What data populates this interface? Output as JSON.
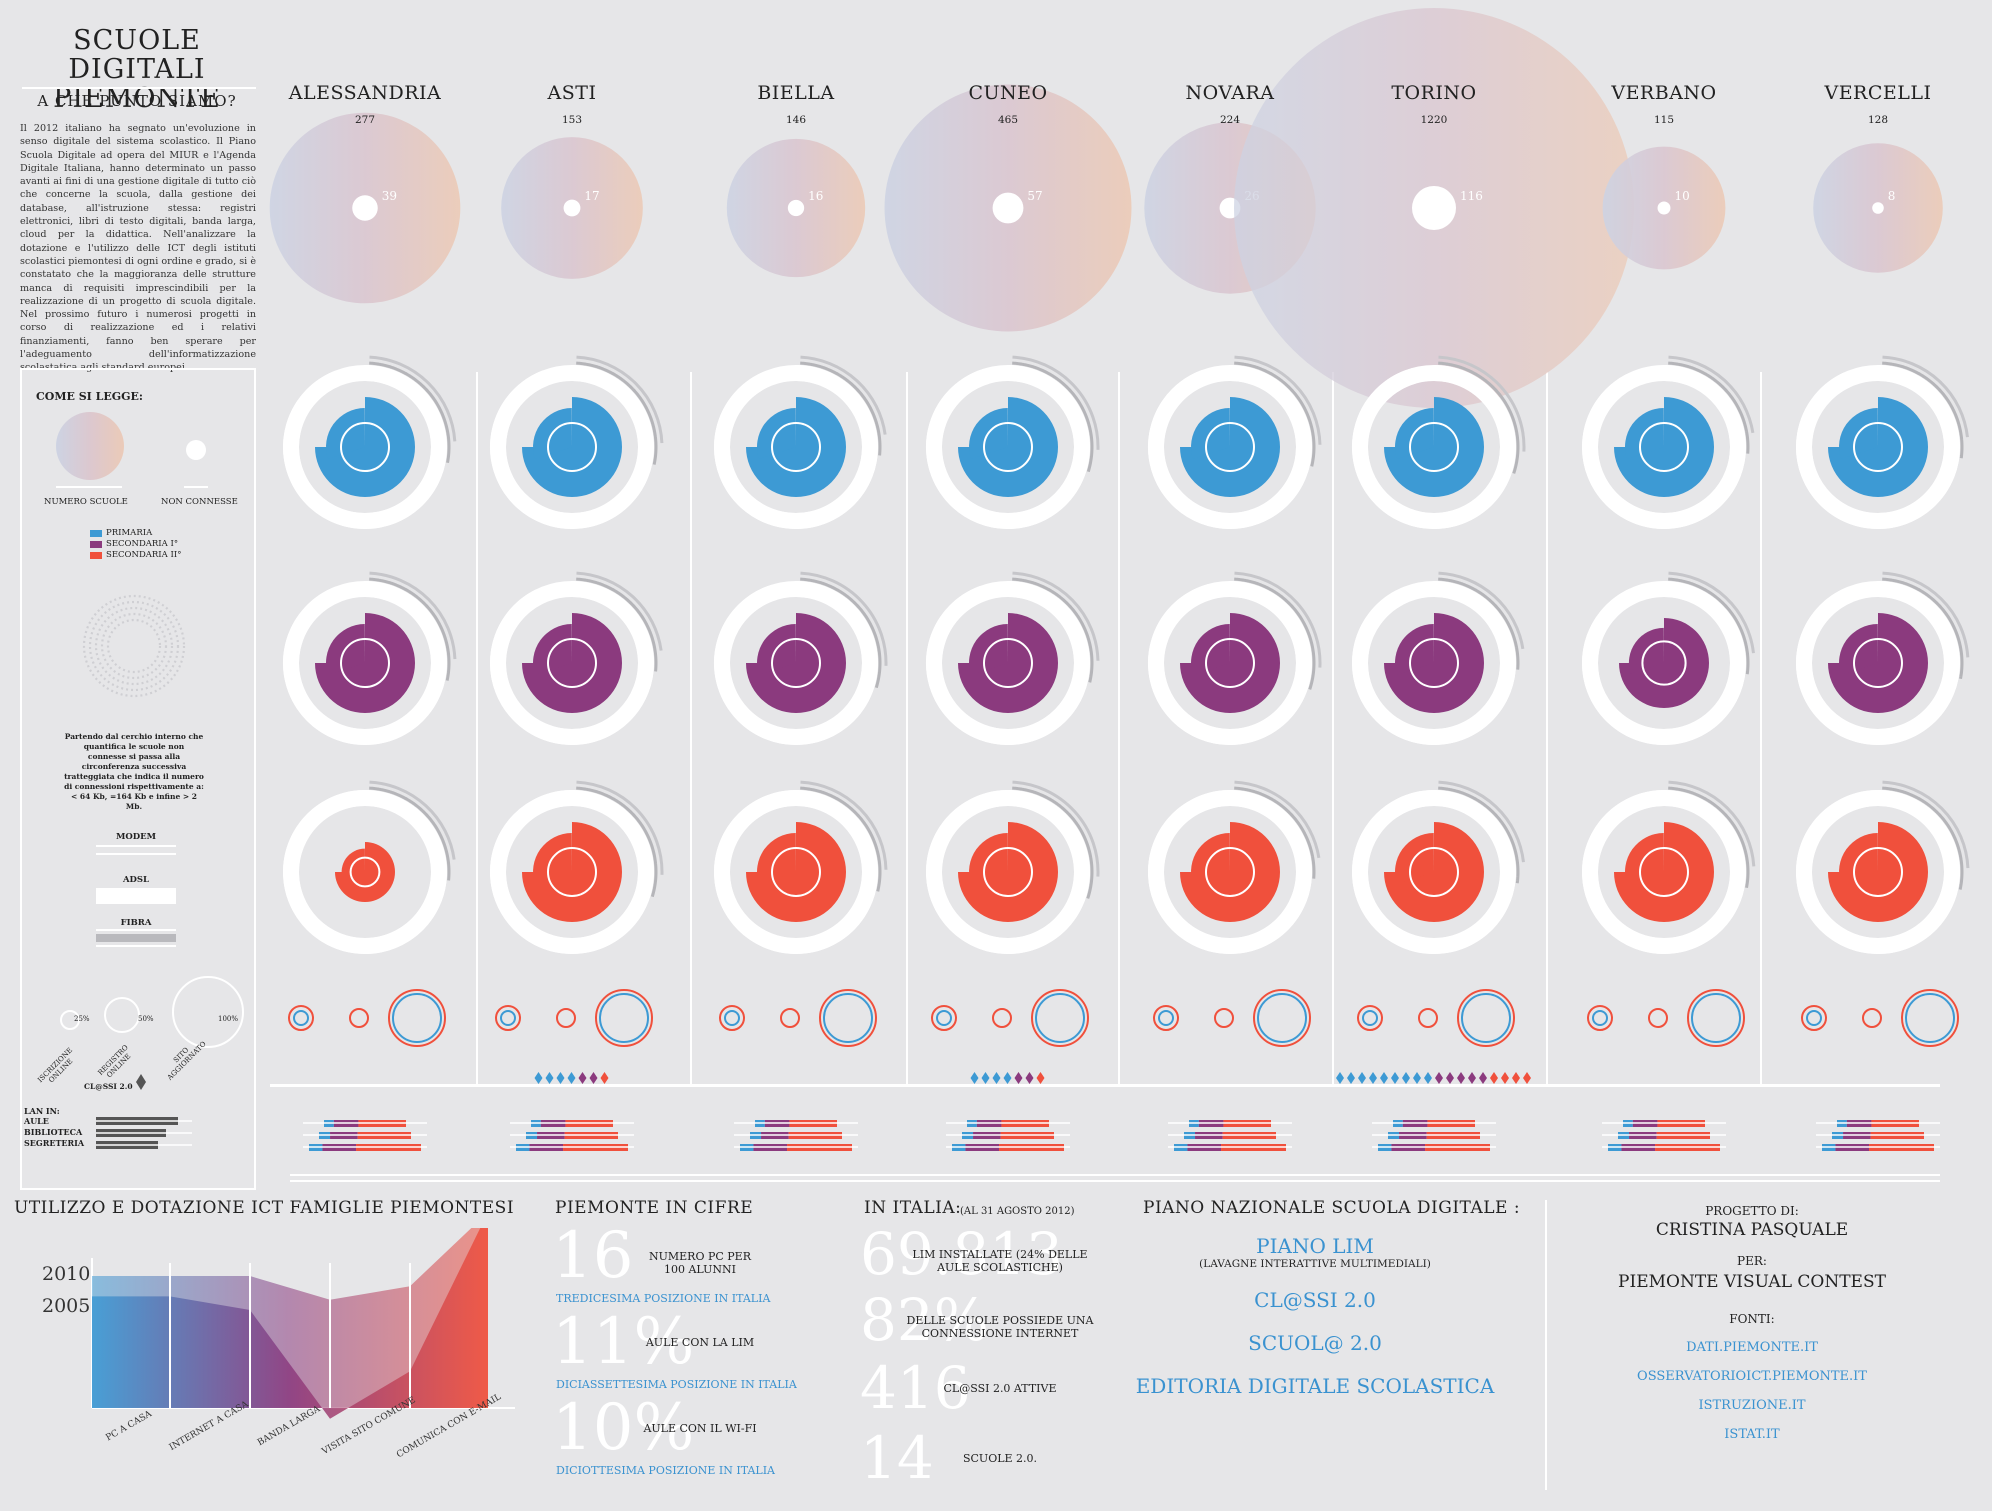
{
  "header": {
    "title_line1": "SCUOLE DIGITALI",
    "title_line2": "PIEMONTE",
    "subtitle": "A CHE PUNTO SIAMO?"
  },
  "intro_text": "Il 2012 italiano ha segnato un'evoluzione in senso digitale del sistema scolastico. Il Piano Scuola Digitale ad opera del MIUR e l'Agenda Digitale Italiana, hanno determinato un passo avanti ai fini di una gestione digitale di tutto ciò che concerne la scuola, dalla gestione dei database, all'istruzione stessa: registri elettronici, libri di testo digitali, banda larga, cloud per la didattica. Nell'analizzare la dotazione e l'utilizzo delle ICT degli istituti scolastici piemontesi di ogni ordine e grado, si è constatato che la maggioranza delle strutture manca di requisiti imprescindibili per la realizzazione di un progetto di scuola digitale. Nel prossimo futuro i numerosi progetti in corso di realizzazione ed i relativi finanziamenti, fanno ben sperare per l'adeguamento dell'informatizzazione scolastatica agli standard europei.",
  "legend": {
    "title": "COME SI LEGGE:",
    "numero_scuole": "NUMERO SCUOLE",
    "non_connesse": "NON CONNESSE",
    "primaria": "PRIMARIA",
    "secondaria1": "SECONDARIA I°",
    "secondaria2": "SECONDARIA II°",
    "explain": "Partendo dal cerchio interno che quantifica le scuole non connesse si passa alla circonferenza successiva tratteggiata che indica il numero di connessioni rispettivamente a: < 64 Kb, =164 Kb e infine > 2 Mb.",
    "modem": "MODEM",
    "adsl": "ADSL",
    "fibra": "FIBRA",
    "pct25": "25%",
    "pct50": "50%",
    "pct100": "100%",
    "iscrizione": "ISCRIZIONE ONLINE",
    "registro": "REGISTRO ONLINE",
    "sito": "SITO AGGIORNATO",
    "classi": "CL@SSI 2.0",
    "lan_in": "LAN IN:",
    "aule": "AULE",
    "biblioteca": "BIBLIOTECA",
    "segreteria": "SEGRETERIA"
  },
  "colors": {
    "primaria": "#3d9ad4",
    "secondaria1": "#8b3a7e",
    "secondaria2": "#f0503c",
    "bg": "#e6e6e8"
  },
  "provinces": [
    {
      "name": "ALESSANDRIA",
      "schools": "277",
      "not_connected": "39",
      "classi": 0
    },
    {
      "name": "ASTI",
      "schools": "153",
      "not_connected": "17",
      "classi": 7
    },
    {
      "name": "BIELLA",
      "schools": "146",
      "not_connected": "16",
      "classi": 0
    },
    {
      "name": "CUNEO",
      "schools": "465",
      "not_connected": "57",
      "classi": 7
    },
    {
      "name": "NOVARA",
      "schools": "224",
      "not_connected": "26",
      "classi": 0
    },
    {
      "name": "TORINO",
      "schools": "1220",
      "not_connected": "116",
      "classi": 18
    },
    {
      "name": "VERBANO",
      "schools": "115",
      "not_connected": "10",
      "classi": 0
    },
    {
      "name": "VERCELLI",
      "schools": "128",
      "not_connected": "8",
      "classi": 0
    }
  ],
  "chart_data": {
    "type": "area",
    "title": "UTILIZZO E DOTAZIONE ICT FAMIGLIE PIEMONTESI",
    "categories": [
      "PC A CASA",
      "INTERNET A CASA",
      "BANDA LARGA",
      "VISITA SITO COMUNE",
      "COMUNICA CON E-MAIL"
    ],
    "series": [
      {
        "name": "2010",
        "values": [
          60,
          60,
          53,
          57,
          67
        ]
      },
      {
        "name": "2005",
        "values": [
          54,
          50,
          18,
          32,
          67
        ]
      }
    ],
    "ylabels": [
      "2010",
      "2005"
    ]
  },
  "cifre": {
    "title": "PIEMONTE IN CIFRE",
    "items": [
      {
        "big": "16",
        "label": "NUMERO PC PER 100 ALUNNI",
        "rank": "TREDICESIMA POSIZIONE IN ITALIA"
      },
      {
        "big": "11%",
        "label": "AULE CON LA LIM",
        "rank": "DICIASSETTESIMA POSIZIONE IN ITALIA"
      },
      {
        "big": "10%",
        "label": "AULE CON IL WI-FI",
        "rank": "DICIOTTESIMA POSIZIONE IN ITALIA"
      }
    ]
  },
  "italia": {
    "title": "IN ITALIA:",
    "date": "(AL 31 AGOSTO 2012)",
    "items": [
      {
        "big": "69.813",
        "label": "LIM INSTALLATE (24% DELLE AULE SCOLASTICHE)"
      },
      {
        "big": "82%",
        "label": "DELLE SCUOLE POSSIEDE UNA CONNESSIONE INTERNET"
      },
      {
        "big": "416",
        "label": "CL@SSI 2.0 ATTIVE"
      },
      {
        "big": "14",
        "label": "SCUOLE 2.0."
      }
    ]
  },
  "piano": {
    "title": "PIANO NAZIONALE SCUOLA DIGITALE :",
    "lim": "PIANO LIM",
    "lim_sub": "(LAVAGNE INTERATTIVE MULTIMEDIALI)",
    "classi": "CL@SSI 2.0",
    "scuola": "SCUOL@ 2.0",
    "editoria": "EDITORIA DIGITALE SCOLASTICA"
  },
  "credits": {
    "progetto_di": "PROGETTO DI:",
    "author": "CRISTINA PASQUALE",
    "per": "PER:",
    "contest": "PIEMONTE VISUAL CONTEST",
    "fonti": "FONTI:",
    "sources": [
      "DATI.PIEMONTE.IT",
      "OSSERVATORIOICT.PIEMONTE.IT",
      "ISTRUZIONE.IT",
      "ISTAT.IT"
    ]
  }
}
